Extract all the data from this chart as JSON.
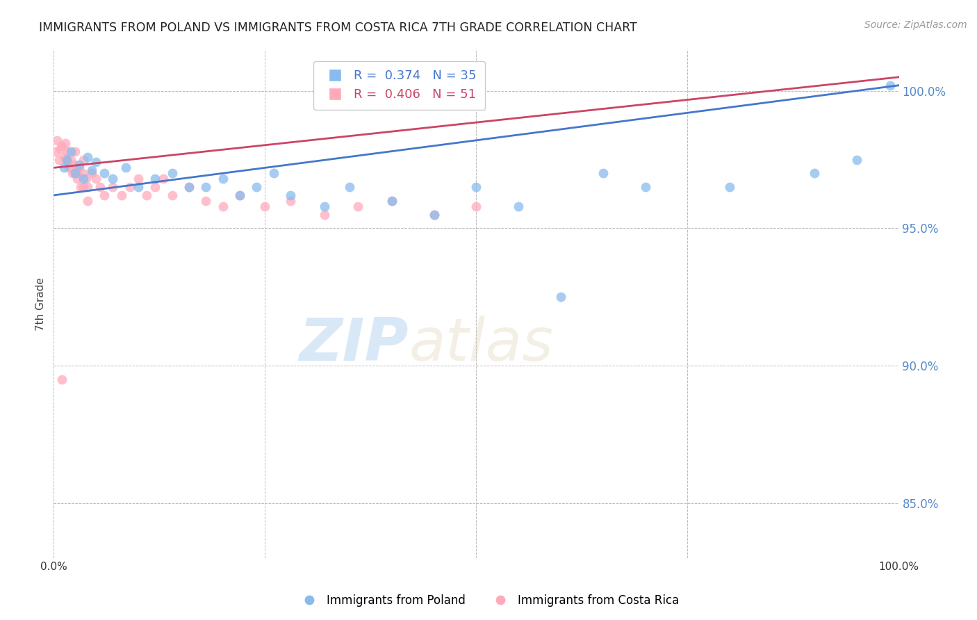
{
  "title": "IMMIGRANTS FROM POLAND VS IMMIGRANTS FROM COSTA RICA 7TH GRADE CORRELATION CHART",
  "source": "Source: ZipAtlas.com",
  "ylabel": "7th Grade",
  "xlim": [
    0.0,
    100.0
  ],
  "ylim": [
    83.0,
    101.5
  ],
  "legend_poland_r": "R =  0.374",
  "legend_poland_n": "N = 35",
  "legend_cr_r": "R =  0.406",
  "legend_cr_n": "N = 51",
  "poland_color": "#88BBEE",
  "costa_rica_color": "#FFAABB",
  "poland_line_color": "#4477CC",
  "costa_rica_line_color": "#CC4466",
  "watermark_zip": "ZIP",
  "watermark_atlas": "atlas",
  "poland_x": [
    1.2,
    1.5,
    2.0,
    2.5,
    3.0,
    3.5,
    4.0,
    4.5,
    5.0,
    6.0,
    7.0,
    8.5,
    10.0,
    12.0,
    14.0,
    16.0,
    18.0,
    20.0,
    22.0,
    24.0,
    26.0,
    28.0,
    32.0,
    35.0,
    40.0,
    45.0,
    50.0,
    55.0,
    60.0,
    65.0,
    70.0,
    80.0,
    90.0,
    95.0,
    99.0
  ],
  "poland_y": [
    97.2,
    97.5,
    97.8,
    97.0,
    97.3,
    96.8,
    97.6,
    97.1,
    97.4,
    97.0,
    96.8,
    97.2,
    96.5,
    96.8,
    97.0,
    96.5,
    96.5,
    96.8,
    96.2,
    96.5,
    97.0,
    96.2,
    95.8,
    96.5,
    96.0,
    95.5,
    96.5,
    95.8,
    92.5,
    97.0,
    96.5,
    96.5,
    97.0,
    97.5,
    100.2
  ],
  "costa_rica_x": [
    0.2,
    0.4,
    0.6,
    0.8,
    1.0,
    1.2,
    1.4,
    1.5,
    1.6,
    1.8,
    2.0,
    2.2,
    2.4,
    2.5,
    2.6,
    2.8,
    3.0,
    3.2,
    3.4,
    3.5,
    3.8,
    4.0,
    4.5,
    5.0,
    5.5,
    6.0,
    7.0,
    8.0,
    9.0,
    10.0,
    11.0,
    12.0,
    13.0,
    14.0,
    16.0,
    18.0,
    20.0,
    22.0,
    25.0,
    28.0,
    32.0,
    36.0,
    40.0,
    45.0,
    50.0,
    4.0,
    3.5,
    2.8,
    2.0,
    1.5,
    1.0
  ],
  "costa_rica_y": [
    97.8,
    98.2,
    97.5,
    97.9,
    98.0,
    97.6,
    98.1,
    97.5,
    97.8,
    97.2,
    97.5,
    97.0,
    97.3,
    97.8,
    97.0,
    96.8,
    97.2,
    96.5,
    97.0,
    97.5,
    96.8,
    96.5,
    97.0,
    96.8,
    96.5,
    96.2,
    96.5,
    96.2,
    96.5,
    96.8,
    96.2,
    96.5,
    96.8,
    96.2,
    96.5,
    96.0,
    95.8,
    96.2,
    95.8,
    96.0,
    95.5,
    95.8,
    96.0,
    95.5,
    95.8,
    96.0,
    96.5,
    97.0,
    97.2,
    97.5,
    89.5
  ],
  "poland_trendline_x": [
    0.0,
    100.0
  ],
  "poland_trendline_y": [
    96.2,
    100.2
  ],
  "cr_trendline_x": [
    0.0,
    100.0
  ],
  "cr_trendline_y": [
    97.2,
    100.5
  ]
}
